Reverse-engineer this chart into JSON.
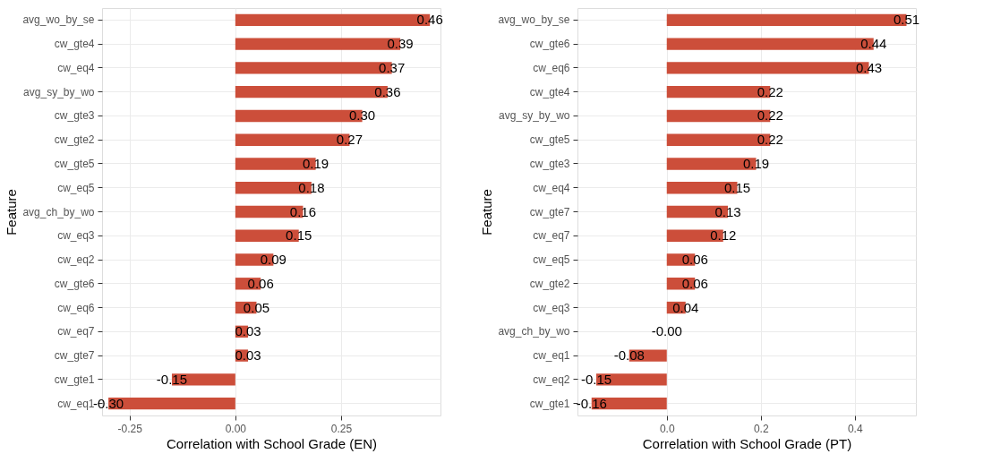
{
  "chart_data": [
    {
      "type": "bar",
      "orientation": "horizontal",
      "xlabel": "Correlation with School Grade (EN)",
      "ylabel": "Feature",
      "categories": [
        "avg_wo_by_se",
        "cw_gte4",
        "cw_eq4",
        "avg_sy_by_wo",
        "cw_gte3",
        "cw_gte2",
        "cw_gte5",
        "cw_eq5",
        "avg_ch_by_wo",
        "cw_eq3",
        "cw_eq2",
        "cw_gte6",
        "cw_eq6",
        "cw_eq7",
        "cw_gte7",
        "cw_gte1",
        "cw_eq1"
      ],
      "series": [
        {
          "color": "#cc4e3a",
          "values": [
            0.46,
            0.39,
            0.37,
            0.36,
            0.3,
            0.27,
            0.19,
            0.18,
            0.16,
            0.15,
            0.09,
            0.06,
            0.05,
            0.03,
            0.03,
            -0.15,
            -0.3
          ],
          "value_labels": [
            "0.46",
            "0.39",
            "0.37",
            "0.36",
            "0.30",
            "0.27",
            "0.19",
            "0.18",
            "0.16",
            "0.15",
            "0.09",
            "0.06",
            "0.05",
            "0.03",
            "0.03",
            "-0.15",
            "-0.30"
          ]
        }
      ],
      "xlim": [
        -0.315,
        0.485
      ],
      "xticks": [
        {
          "value": -0.25,
          "label": "-0.25"
        },
        {
          "value": 0,
          "label": "0.00"
        },
        {
          "value": 0.25,
          "label": "0.25"
        }
      ],
      "grid": true,
      "legend": false
    },
    {
      "type": "bar",
      "orientation": "horizontal",
      "xlabel": "Correlation with School Grade (PT)",
      "ylabel": "Feature",
      "categories": [
        "avg_wo_by_se",
        "cw_gte6",
        "cw_eq6",
        "cw_gte4",
        "avg_sy_by_wo",
        "cw_gte5",
        "cw_gte3",
        "cw_eq4",
        "cw_gte7",
        "cw_eq7",
        "cw_eq5",
        "cw_gte2",
        "cw_eq3",
        "avg_ch_by_wo",
        "cw_eq1",
        "cw_eq2",
        "cw_gte1"
      ],
      "series": [
        {
          "color": "#cc4e3a",
          "values": [
            0.51,
            0.44,
            0.43,
            0.22,
            0.22,
            0.22,
            0.19,
            0.15,
            0.13,
            0.12,
            0.06,
            0.06,
            0.04,
            -0.0,
            -0.08,
            -0.15,
            -0.16
          ],
          "value_labels": [
            "0.51",
            "0.44",
            "0.43",
            "0.22",
            "0.22",
            "0.22",
            "0.19",
            "0.15",
            "0.13",
            "0.12",
            "0.06",
            "0.06",
            "0.04",
            "-0.00",
            "-0.08",
            "-0.15",
            "-0.16"
          ]
        }
      ],
      "xlim": [
        -0.19,
        0.53
      ],
      "xticks": [
        {
          "value": 0,
          "label": "0.0"
        },
        {
          "value": 0.2,
          "label": "0.2"
        },
        {
          "value": 0.4,
          "label": "0.4"
        }
      ],
      "grid": true,
      "legend": false
    }
  ]
}
